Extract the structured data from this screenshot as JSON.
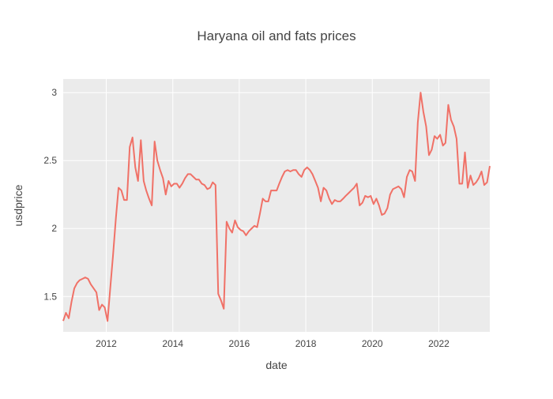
{
  "chart_data": {
    "type": "line",
    "title": "Haryana oil and fats prices",
    "xlabel": "date",
    "ylabel": "usdprice",
    "x_range": [
      "2010-09-15",
      "2023-07-15"
    ],
    "ylim": [
      1.24,
      3.1
    ],
    "x_ticks": [
      {
        "value": "2012-01-01",
        "label": "2012"
      },
      {
        "value": "2014-01-01",
        "label": "2014"
      },
      {
        "value": "2016-01-01",
        "label": "2016"
      },
      {
        "value": "2018-01-01",
        "label": "2018"
      },
      {
        "value": "2020-01-01",
        "label": "2020"
      },
      {
        "value": "2022-01-01",
        "label": "2022"
      }
    ],
    "y_ticks": [
      {
        "value": 1.5,
        "label": "1.5"
      },
      {
        "value": 2,
        "label": "2"
      },
      {
        "value": 2.5,
        "label": "2.5"
      },
      {
        "value": 3,
        "label": "3"
      }
    ],
    "grid": true,
    "legend": false,
    "colors": {
      "line": "#f07167",
      "plot_background": "#ebebeb",
      "grid": "#ffffff",
      "text": "#444444"
    },
    "series": [
      {
        "x": [
          "2010-09-15",
          "2010-10-15",
          "2010-11-15",
          "2010-12-15",
          "2011-01-15",
          "2011-02-15",
          "2011-03-15",
          "2011-04-15",
          "2011-05-15",
          "2011-06-15",
          "2011-07-15",
          "2011-08-15",
          "2011-09-15",
          "2011-10-15",
          "2011-11-15",
          "2011-12-15",
          "2012-01-15",
          "2012-02-15",
          "2012-03-15",
          "2012-04-15",
          "2012-05-15",
          "2012-06-15",
          "2012-07-15",
          "2012-08-15",
          "2012-09-15",
          "2012-10-15",
          "2012-11-15",
          "2012-12-15",
          "2013-01-15",
          "2013-02-15",
          "2013-03-15",
          "2013-04-15",
          "2013-05-15",
          "2013-06-15",
          "2013-07-15",
          "2013-08-15",
          "2013-09-15",
          "2013-10-15",
          "2013-11-15",
          "2013-12-15",
          "2014-01-15",
          "2014-02-15",
          "2014-03-15",
          "2014-04-15",
          "2014-05-15",
          "2014-06-15",
          "2014-07-15",
          "2014-08-15",
          "2014-09-15",
          "2014-10-15",
          "2014-11-15",
          "2014-12-15",
          "2015-01-15",
          "2015-02-15",
          "2015-03-15",
          "2015-04-15",
          "2015-05-15",
          "2015-06-15",
          "2015-07-15",
          "2015-08-15",
          "2015-09-15",
          "2015-10-15",
          "2015-11-15",
          "2015-12-15",
          "2016-01-15",
          "2016-02-15",
          "2016-03-15",
          "2016-04-15",
          "2016-05-15",
          "2016-06-15",
          "2016-07-15",
          "2016-08-15",
          "2016-09-15",
          "2016-10-15",
          "2016-11-15",
          "2016-12-15",
          "2017-01-15",
          "2017-02-15",
          "2017-03-15",
          "2017-04-15",
          "2017-05-15",
          "2017-06-15",
          "2017-07-15",
          "2017-08-15",
          "2017-09-15",
          "2017-10-15",
          "2017-11-15",
          "2017-12-15",
          "2018-01-15",
          "2018-02-15",
          "2018-03-15",
          "2018-04-15",
          "2018-05-15",
          "2018-06-15",
          "2018-07-15",
          "2018-08-15",
          "2018-09-15",
          "2018-10-15",
          "2018-11-15",
          "2018-12-15",
          "2019-01-15",
          "2019-02-15",
          "2019-03-15",
          "2019-04-15",
          "2019-05-15",
          "2019-06-15",
          "2019-07-15",
          "2019-08-15",
          "2019-09-15",
          "2019-10-15",
          "2019-11-15",
          "2019-12-15",
          "2020-01-15",
          "2020-02-15",
          "2020-03-15",
          "2020-04-15",
          "2020-05-15",
          "2020-06-15",
          "2020-07-15",
          "2020-08-15",
          "2020-09-15",
          "2020-10-15",
          "2020-11-15",
          "2020-12-15",
          "2021-01-15",
          "2021-02-15",
          "2021-03-15",
          "2021-04-15",
          "2021-05-15",
          "2021-06-15",
          "2021-07-15",
          "2021-08-15",
          "2021-09-15",
          "2021-10-15",
          "2021-11-15",
          "2021-12-15",
          "2022-01-15",
          "2022-02-15",
          "2022-03-15",
          "2022-04-15",
          "2022-05-15",
          "2022-06-15",
          "2022-07-15",
          "2022-08-15",
          "2022-09-15",
          "2022-10-15",
          "2022-11-15",
          "2022-12-15",
          "2023-01-15",
          "2023-02-15",
          "2023-03-15",
          "2023-04-15",
          "2023-05-15",
          "2023-06-15",
          "2023-07-15"
        ],
        "y": [
          1.32,
          1.38,
          1.34,
          1.46,
          1.56,
          1.6,
          1.62,
          1.63,
          1.64,
          1.63,
          1.59,
          1.56,
          1.53,
          1.4,
          1.44,
          1.42,
          1.32,
          1.57,
          1.8,
          2.07,
          2.3,
          2.28,
          2.21,
          2.21,
          2.6,
          2.67,
          2.45,
          2.35,
          2.65,
          2.35,
          2.28,
          2.22,
          2.17,
          2.64,
          2.5,
          2.43,
          2.37,
          2.25,
          2.35,
          2.31,
          2.33,
          2.33,
          2.3,
          2.33,
          2.37,
          2.4,
          2.4,
          2.38,
          2.36,
          2.36,
          2.33,
          2.32,
          2.29,
          2.3,
          2.34,
          2.32,
          1.52,
          1.47,
          1.41,
          2.05,
          2.0,
          1.97,
          2.06,
          2.01,
          1.99,
          1.98,
          1.95,
          1.98,
          2.0,
          2.02,
          2.01,
          2.11,
          2.22,
          2.2,
          2.2,
          2.28,
          2.28,
          2.28,
          2.33,
          2.38,
          2.42,
          2.43,
          2.42,
          2.43,
          2.43,
          2.4,
          2.38,
          2.43,
          2.45,
          2.43,
          2.4,
          2.35,
          2.3,
          2.2,
          2.3,
          2.28,
          2.22,
          2.18,
          2.21,
          2.2,
          2.2,
          2.22,
          2.24,
          2.26,
          2.28,
          2.3,
          2.33,
          2.17,
          2.19,
          2.24,
          2.23,
          2.24,
          2.18,
          2.22,
          2.17,
          2.1,
          2.11,
          2.15,
          2.25,
          2.29,
          2.3,
          2.31,
          2.29,
          2.23,
          2.38,
          2.43,
          2.42,
          2.35,
          2.78,
          3.0,
          2.86,
          2.75,
          2.54,
          2.58,
          2.68,
          2.66,
          2.69,
          2.61,
          2.63,
          2.91,
          2.8,
          2.75,
          2.66,
          2.33,
          2.33,
          2.56,
          2.3,
          2.39,
          2.32,
          2.34,
          2.37,
          2.42,
          2.32,
          2.34,
          2.46
        ]
      }
    ]
  }
}
